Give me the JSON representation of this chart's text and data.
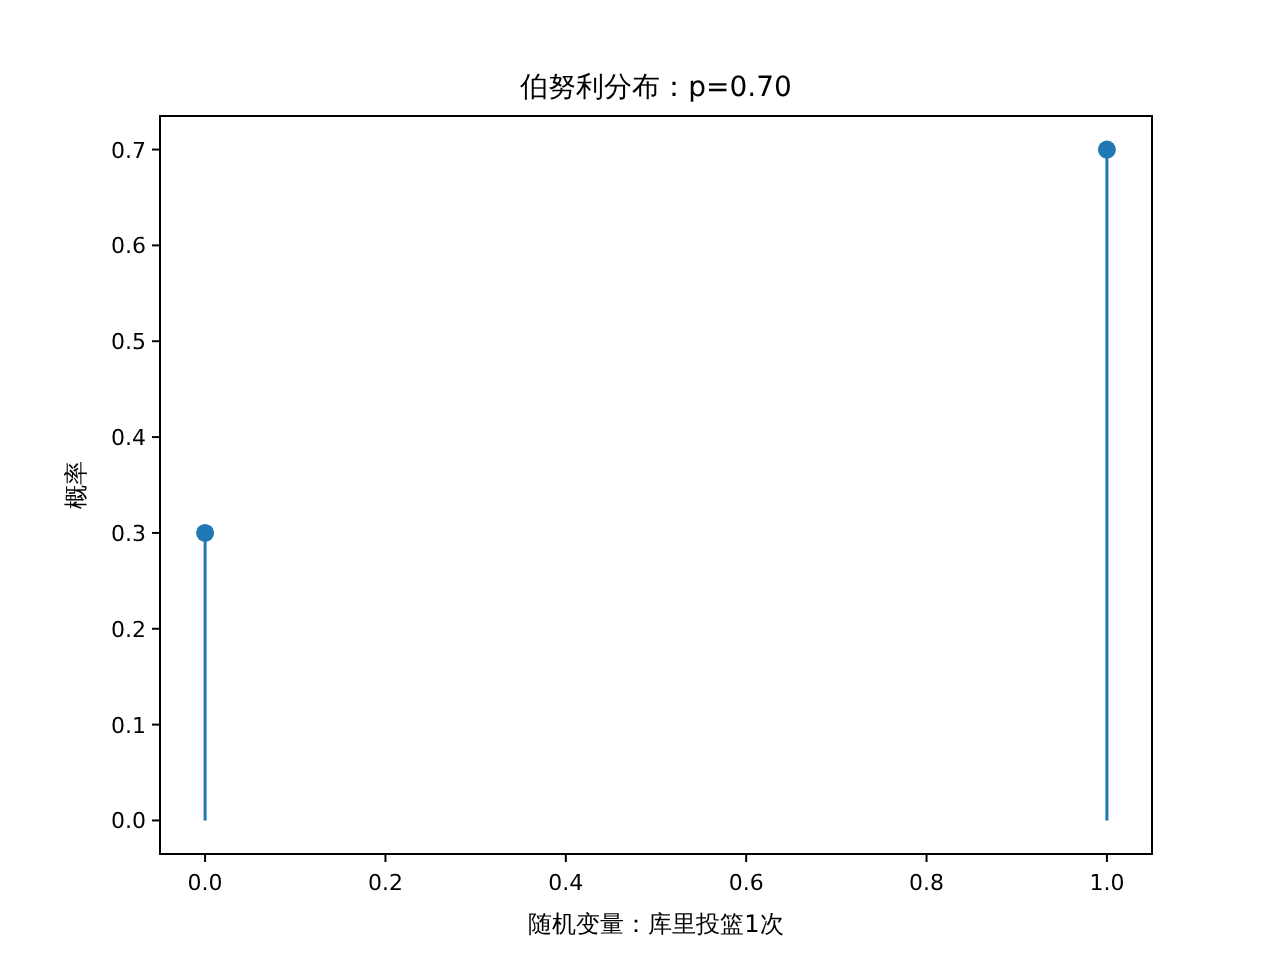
{
  "chart_data": {
    "type": "lollipop",
    "title": "伯努利分布：p=0.70",
    "xlabel": "随机变量：库里投篮1次",
    "ylabel": "概率",
    "x": [
      0,
      1
    ],
    "values": [
      0.3,
      0.7
    ],
    "color": "#1f77b4",
    "marker": "circle",
    "xlim": [
      -0.05,
      1.05
    ],
    "ylim": [
      -0.035,
      0.735
    ],
    "xticks": [
      {
        "value": 0,
        "label": "0.0"
      },
      {
        "value": 0.2,
        "label": "0.2"
      },
      {
        "value": 0.4,
        "label": "0.4"
      },
      {
        "value": 0.6,
        "label": "0.6"
      },
      {
        "value": 0.8,
        "label": "0.8"
      },
      {
        "value": 1,
        "label": "1.0"
      }
    ],
    "yticks": [
      {
        "value": 0,
        "label": "0.0"
      },
      {
        "value": 0.1,
        "label": "0.1"
      },
      {
        "value": 0.2,
        "label": "0.2"
      },
      {
        "value": 0.3,
        "label": "0.3"
      },
      {
        "value": 0.4,
        "label": "0.4"
      },
      {
        "value": 0.5,
        "label": "0.5"
      },
      {
        "value": 0.6,
        "label": "0.6"
      },
      {
        "value": 0.7,
        "label": "0.7"
      }
    ]
  }
}
